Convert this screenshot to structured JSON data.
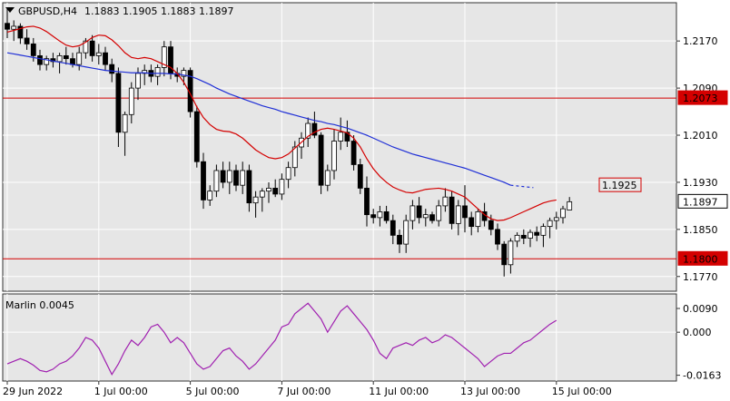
{
  "header": {
    "symbol_label": "GBPUSD,H4",
    "ohlc_text": "1.1883 1.1905 1.1883 1.1897"
  },
  "colors": {
    "background": "#e6e6e6",
    "grid": "#ffffff",
    "axis": "#333333",
    "candle_up_fill": "#ffffff",
    "candle_down_fill": "#000000",
    "candle_outline": "#000000",
    "ma_fast": "#d40000",
    "ma_slow": "#1f2fd6",
    "level_line": "#d40000",
    "marlin_line": "#a020b0"
  },
  "chart_data": [
    {
      "type": "line",
      "title": "GBPUSD,H4",
      "description_ohlc": {
        "open": 1.1883,
        "high": 1.1905,
        "low": 1.1883,
        "close": 1.1897
      },
      "ylim": [
        1.1745,
        1.2235
      ],
      "y_ticks": [
        "1.2170",
        "1.2090",
        "1.2010",
        "1.1930",
        "1.1850",
        "1.1770"
      ],
      "y_tick_values": [
        1.217,
        1.209,
        1.201,
        1.193,
        1.185,
        1.177
      ],
      "x_ticks": [
        "29 Jun 2022",
        "1 Jul 00:00",
        "5 Jul 00:00",
        "7 Jul 00:00",
        "11 Jul 00:00",
        "13 Jul 00:00",
        "15 Jul 00:00"
      ],
      "x_tick_bar_index": [
        0,
        14,
        28,
        42,
        56,
        70,
        84
      ],
      "price_labels": [
        {
          "text": "1.2073",
          "value": 1.2073,
          "style": "filled-red",
          "with_line": true
        },
        {
          "text": "1.1925",
          "value": 1.1925,
          "style": "boxed-red",
          "with_line": false
        },
        {
          "text": "1.1897",
          "value": 1.1897,
          "style": "boxed-black",
          "with_line": false
        },
        {
          "text": "1.1800",
          "value": 1.18,
          "style": "filled-red",
          "with_line": true
        }
      ],
      "candles": [
        [
          1.22,
          1.2225,
          1.2175,
          1.219
        ],
        [
          1.219,
          1.2205,
          1.217,
          1.2195
        ],
        [
          1.2195,
          1.22,
          1.2165,
          1.2175
        ],
        [
          1.2175,
          1.219,
          1.2155,
          1.2165
        ],
        [
          1.2165,
          1.2175,
          1.2135,
          1.2145
        ],
        [
          1.2145,
          1.2155,
          1.212,
          1.213
        ],
        [
          1.213,
          1.2145,
          1.212,
          1.214
        ],
        [
          1.214,
          1.215,
          1.2125,
          1.2135
        ],
        [
          1.2135,
          1.215,
          1.2115,
          1.2145
        ],
        [
          1.2145,
          1.216,
          1.213,
          1.214
        ],
        [
          1.214,
          1.215,
          1.2125,
          1.213
        ],
        [
          1.213,
          1.216,
          1.212,
          1.215
        ],
        [
          1.215,
          1.2175,
          1.214,
          1.217
        ],
        [
          1.217,
          1.218,
          1.2135,
          1.2145
        ],
        [
          1.2145,
          1.2165,
          1.213,
          1.215
        ],
        [
          1.215,
          1.216,
          1.212,
          1.213
        ],
        [
          1.213,
          1.214,
          1.21,
          1.2115
        ],
        [
          1.2115,
          1.2125,
          1.199,
          1.2015
        ],
        [
          1.2015,
          1.205,
          1.1975,
          1.2045
        ],
        [
          1.2045,
          1.21,
          1.203,
          1.209
        ],
        [
          1.209,
          1.2125,
          1.207,
          1.2115
        ],
        [
          1.2115,
          1.213,
          1.2095,
          1.212
        ],
        [
          1.212,
          1.213,
          1.21,
          1.211
        ],
        [
          1.211,
          1.213,
          1.2095,
          1.2125
        ],
        [
          1.2125,
          1.217,
          1.211,
          1.216
        ],
        [
          1.216,
          1.217,
          1.2105,
          1.2115
        ],
        [
          1.2115,
          1.2125,
          1.21,
          1.211
        ],
        [
          1.211,
          1.2125,
          1.2095,
          1.212
        ],
        [
          1.212,
          1.2125,
          1.204,
          1.205
        ],
        [
          1.205,
          1.206,
          1.1955,
          1.1965
        ],
        [
          1.1965,
          1.198,
          1.1885,
          1.19
        ],
        [
          1.19,
          1.1925,
          1.189,
          1.1915
        ],
        [
          1.1915,
          1.196,
          1.1905,
          1.195
        ],
        [
          1.195,
          1.1965,
          1.192,
          1.193
        ],
        [
          1.193,
          1.1965,
          1.191,
          1.195
        ],
        [
          1.195,
          1.196,
          1.1915,
          1.1925
        ],
        [
          1.1925,
          1.1965,
          1.191,
          1.195
        ],
        [
          1.195,
          1.196,
          1.188,
          1.1895
        ],
        [
          1.1895,
          1.1915,
          1.187,
          1.1905
        ],
        [
          1.1905,
          1.192,
          1.188,
          1.1915
        ],
        [
          1.1915,
          1.193,
          1.1895,
          1.192
        ],
        [
          1.192,
          1.1935,
          1.1905,
          1.191
        ],
        [
          1.191,
          1.1945,
          1.19,
          1.1935
        ],
        [
          1.1935,
          1.1965,
          1.192,
          1.1955
        ],
        [
          1.1955,
          1.2,
          1.194,
          1.199
        ],
        [
          1.199,
          1.2015,
          1.197,
          1.2005
        ],
        [
          1.2005,
          1.204,
          1.199,
          1.203
        ],
        [
          1.203,
          1.205,
          1.2005,
          1.201
        ],
        [
          1.201,
          1.2015,
          1.191,
          1.1925
        ],
        [
          1.1925,
          1.196,
          1.1915,
          1.195
        ],
        [
          1.195,
          1.202,
          1.1935,
          1.2
        ],
        [
          1.2,
          1.204,
          1.1985,
          1.2015
        ],
        [
          1.2015,
          1.2035,
          1.199,
          1.2
        ],
        [
          1.2,
          1.201,
          1.195,
          1.196
        ],
        [
          1.196,
          1.197,
          1.191,
          1.192
        ],
        [
          1.192,
          1.194,
          1.1855,
          1.1875
        ],
        [
          1.1875,
          1.1885,
          1.186,
          1.187
        ],
        [
          1.187,
          1.189,
          1.1855,
          1.188
        ],
        [
          1.188,
          1.189,
          1.186,
          1.1865
        ],
        [
          1.1865,
          1.1875,
          1.1825,
          1.184
        ],
        [
          1.184,
          1.185,
          1.181,
          1.1825
        ],
        [
          1.1825,
          1.1875,
          1.181,
          1.1865
        ],
        [
          1.1865,
          1.19,
          1.185,
          1.189
        ],
        [
          1.189,
          1.1905,
          1.186,
          1.187
        ],
        [
          1.187,
          1.1885,
          1.1855,
          1.1875
        ],
        [
          1.1875,
          1.188,
          1.186,
          1.1865
        ],
        [
          1.1865,
          1.19,
          1.1855,
          1.189
        ],
        [
          1.189,
          1.192,
          1.188,
          1.1905
        ],
        [
          1.1905,
          1.1915,
          1.185,
          1.186
        ],
        [
          1.186,
          1.19,
          1.184,
          1.189
        ],
        [
          1.189,
          1.1925,
          1.1845,
          1.187
        ],
        [
          1.187,
          1.188,
          1.184,
          1.1855
        ],
        [
          1.1855,
          1.1885,
          1.1845,
          1.188
        ],
        [
          1.188,
          1.1895,
          1.1855,
          1.1865
        ],
        [
          1.1865,
          1.1875,
          1.184,
          1.185
        ],
        [
          1.185,
          1.186,
          1.1815,
          1.1825
        ],
        [
          1.1825,
          1.183,
          1.177,
          1.179
        ],
        [
          1.179,
          1.1835,
          1.1775,
          1.183
        ],
        [
          1.183,
          1.1845,
          1.182,
          1.184
        ],
        [
          1.184,
          1.185,
          1.1825,
          1.1835
        ],
        [
          1.1835,
          1.185,
          1.182,
          1.1845
        ],
        [
          1.1845,
          1.1855,
          1.183,
          1.184
        ],
        [
          1.184,
          1.186,
          1.182,
          1.1855
        ],
        [
          1.1855,
          1.187,
          1.1835,
          1.1865
        ],
        [
          1.1865,
          1.188,
          1.185,
          1.187
        ],
        [
          1.187,
          1.189,
          1.186,
          1.1885
        ],
        [
          1.1883,
          1.1905,
          1.1883,
          1.1897
        ]
      ],
      "series": [
        {
          "name": "ma_fast",
          "values": [
            1.2185,
            1.2188,
            1.2191,
            1.2194,
            1.2195,
            1.2192,
            1.2186,
            1.2178,
            1.217,
            1.2163,
            1.216,
            1.2162,
            1.2168,
            1.2176,
            1.218,
            1.2179,
            1.2172,
            1.2162,
            1.215,
            1.2142,
            1.214,
            1.2142,
            1.214,
            1.2135,
            1.213,
            1.2125,
            1.2115,
            1.21,
            1.208,
            1.2058,
            1.204,
            1.2028,
            1.202,
            1.2017,
            1.2016,
            1.2012,
            1.2005,
            1.1995,
            1.1985,
            1.1978,
            1.1972,
            1.197,
            1.1972,
            1.1978,
            1.1988,
            1.1998,
            1.2008,
            1.2015,
            1.202,
            1.2022,
            1.202,
            1.2017,
            1.2014,
            1.2005,
            1.199,
            1.197,
            1.1953,
            1.194,
            1.193,
            1.1922,
            1.1917,
            1.1913,
            1.1912,
            1.1915,
            1.1918,
            1.1919,
            1.192,
            1.1918,
            1.1915,
            1.191,
            1.1905,
            1.1895,
            1.1885,
            1.1875,
            1.1868,
            1.1865,
            1.1866,
            1.187,
            1.1875,
            1.188,
            1.1885,
            1.189,
            1.1895,
            1.1898,
            1.19
          ]
        },
        {
          "name": "ma_slow",
          "values": [
            1.215,
            1.2148,
            1.2146,
            1.2144,
            1.2142,
            1.214,
            1.2138,
            1.2136,
            1.2134,
            1.2132,
            1.213,
            1.2128,
            1.2126,
            1.2124,
            1.2122,
            1.212,
            1.2119,
            1.2118,
            1.2117,
            1.2116,
            1.2116,
            1.2116,
            1.2115,
            1.2115,
            1.2115,
            1.2114,
            1.2114,
            1.2112,
            1.211,
            1.2106,
            1.2101,
            1.2096,
            1.209,
            1.2085,
            1.208,
            1.2076,
            1.2072,
            1.2068,
            1.2064,
            1.206,
            1.2057,
            1.2054,
            1.205,
            1.2047,
            1.2044,
            1.2041,
            1.2038,
            1.2035,
            1.2033,
            1.203,
            1.2028,
            1.2025,
            1.2022,
            1.2018,
            1.2014,
            1.201,
            1.2005,
            1.2,
            1.1995,
            1.199,
            1.1986,
            1.1982,
            1.1978,
            1.1975,
            1.1972,
            1.1969,
            1.1966,
            1.1963,
            1.196,
            1.1957,
            1.1954,
            1.195,
            1.1946,
            1.1942,
            1.1938,
            1.1934,
            1.193,
            1.1925
          ]
        }
      ]
    },
    {
      "type": "line",
      "title": "Marlin 0.0045",
      "ylim": [
        -0.0185,
        0.0145
      ],
      "y_ticks": [
        "0.0090",
        "0.000",
        "-0.0163"
      ],
      "y_tick_values": [
        0.009,
        0.0,
        -0.0163
      ],
      "series": [
        {
          "name": "Marlin",
          "values": [
            -0.012,
            -0.011,
            -0.01,
            -0.011,
            -0.0125,
            -0.0145,
            -0.015,
            -0.014,
            -0.012,
            -0.011,
            -0.009,
            -0.006,
            -0.002,
            -0.003,
            -0.006,
            -0.011,
            -0.016,
            -0.012,
            -0.007,
            -0.003,
            -0.005,
            -0.002,
            0.002,
            0.003,
            0.0,
            -0.004,
            -0.002,
            -0.004,
            -0.008,
            -0.012,
            -0.014,
            -0.013,
            -0.01,
            -0.007,
            -0.006,
            -0.009,
            -0.011,
            -0.014,
            -0.012,
            -0.009,
            -0.006,
            -0.003,
            0.002,
            0.003,
            0.007,
            0.009,
            0.011,
            0.008,
            0.005,
            0.0,
            0.004,
            0.008,
            0.01,
            0.007,
            0.004,
            0.001,
            -0.003,
            -0.008,
            -0.01,
            -0.006,
            -0.005,
            -0.004,
            -0.005,
            -0.003,
            -0.002,
            -0.004,
            -0.003,
            -0.001,
            -0.002,
            -0.004,
            -0.006,
            -0.008,
            -0.01,
            -0.013,
            -0.011,
            -0.009,
            -0.008,
            -0.008,
            -0.006,
            -0.004,
            -0.003,
            -0.001,
            0.001,
            0.003,
            0.0045
          ]
        }
      ]
    }
  ]
}
